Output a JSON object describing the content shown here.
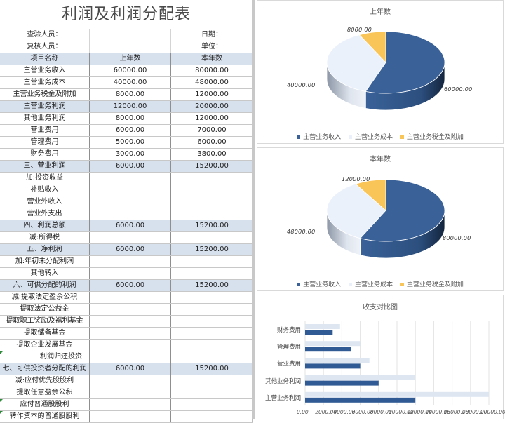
{
  "sheet": {
    "title": "利润及利润分配表",
    "meta": [
      {
        "left_label": "查验人员：",
        "right_label": "日期："
      },
      {
        "left_label": "复核人员：",
        "right_label": "单位："
      }
    ],
    "columns": [
      "项目名称",
      "上年数",
      "本年数"
    ],
    "rows": [
      {
        "name": "主营业务收入",
        "prev": "60000.00",
        "curr": "80000.00",
        "hl": false
      },
      {
        "name": "主营业务成本",
        "prev": "40000.00",
        "curr": "48000.00",
        "hl": false
      },
      {
        "name": "主营业务税金及附加",
        "prev": "8000.00",
        "curr": "12000.00",
        "hl": false
      },
      {
        "name": "主营业务利润",
        "prev": "12000.00",
        "curr": "20000.00",
        "hl": true
      },
      {
        "name": "其他业务利润",
        "prev": "8000.00",
        "curr": "12000.00",
        "hl": false
      },
      {
        "name": "营业费用",
        "prev": "6000.00",
        "curr": "7000.00",
        "hl": false
      },
      {
        "name": "管理费用",
        "prev": "5000.00",
        "curr": "6000.00",
        "hl": false
      },
      {
        "name": "财务费用",
        "prev": "3000.00",
        "curr": "3800.00",
        "hl": false
      },
      {
        "name": "三、营业利润",
        "prev": "6000.00",
        "curr": "15200.00",
        "hl": true
      },
      {
        "name": "加:投资收益",
        "prev": "",
        "curr": "",
        "hl": false
      },
      {
        "name": "补贴收入",
        "prev": "",
        "curr": "",
        "hl": false
      },
      {
        "name": "营业外收入",
        "prev": "",
        "curr": "",
        "hl": false
      },
      {
        "name": "营业外支出",
        "prev": "",
        "curr": "",
        "hl": false
      },
      {
        "name": "四、利润总额",
        "prev": "6000.00",
        "curr": "15200.00",
        "hl": true
      },
      {
        "name": "减:所得税",
        "prev": "",
        "curr": "",
        "hl": false
      },
      {
        "name": "五、净利润",
        "prev": "6000.00",
        "curr": "15200.00",
        "hl": true
      },
      {
        "name": "加:年初未分配利润",
        "prev": "",
        "curr": "",
        "hl": false
      },
      {
        "name": "其他转入",
        "prev": "",
        "curr": "",
        "hl": false
      },
      {
        "name": "六、可供分配的利润",
        "prev": "6000.00",
        "curr": "15200.00",
        "hl": true
      },
      {
        "name": "减:提取法定盈余公积",
        "prev": "",
        "curr": "",
        "hl": false
      },
      {
        "name": "提取法定公益金",
        "prev": "",
        "curr": "",
        "hl": false
      },
      {
        "name": "提取职工奖励及福利基金",
        "prev": "",
        "curr": "",
        "hl": false
      },
      {
        "name": "提取储备基金",
        "prev": "",
        "curr": "",
        "hl": false
      },
      {
        "name": "提取企业发展基金",
        "prev": "",
        "curr": "",
        "hl": false
      },
      {
        "name": "利润归还投资",
        "prev": "",
        "curr": "",
        "hl": false
      },
      {
        "name": "七、可供投资者分配的利润",
        "prev": "6000.00",
        "curr": "15200.00",
        "hl": true
      },
      {
        "name": "减:应付优先股股利",
        "prev": "",
        "curr": "",
        "hl": false
      },
      {
        "name": "提取任意盈余公积",
        "prev": "",
        "curr": "",
        "hl": false
      },
      {
        "name": "应付普通股股利",
        "prev": "",
        "curr": "",
        "hl": false
      },
      {
        "name": "转作资本的普通股股利",
        "prev": "",
        "curr": "",
        "hl": false
      }
    ]
  },
  "colors": {
    "revenue": "#3a6299",
    "cost": "#eaf1fb",
    "tax": "#f9c458",
    "bar_prev": "#2f5a94",
    "bar_curr": "#dde6f1",
    "header_fill": "#d7e1ee"
  },
  "chart_data": [
    {
      "type": "pie",
      "title": "上年数",
      "categories": [
        "主营业务收入",
        "主营业务成本",
        "主营业务税金及附加"
      ],
      "values": [
        60000,
        40000,
        8000
      ],
      "labels": [
        "60000.00",
        "40000.00",
        "8000.00"
      ],
      "legend_position": "bottom",
      "style": "3d"
    },
    {
      "type": "pie",
      "title": "本年数",
      "categories": [
        "主营业务收入",
        "主营业务成本",
        "主营业务税金及附加"
      ],
      "values": [
        80000,
        48000,
        12000
      ],
      "labels": [
        "80000.00",
        "48000.00",
        "12000.00"
      ],
      "legend_position": "bottom",
      "style": "3d"
    },
    {
      "type": "bar",
      "orientation": "horizontal",
      "title": "收支对比图",
      "categories": [
        "财务费用",
        "管理费用",
        "营业费用",
        "其他业务利润",
        "主营业务利润"
      ],
      "series": [
        {
          "name": "本年数",
          "values": [
            3800,
            6000,
            7000,
            12000,
            20000
          ]
        },
        {
          "name": "上年数",
          "values": [
            3000,
            5000,
            6000,
            8000,
            12000
          ]
        }
      ],
      "xlim": [
        0,
        20000
      ],
      "x_ticks": [
        "0.00",
        "2000.00",
        "4000.00",
        "6000.00",
        "8000.00",
        "10000.00",
        "12000.00",
        "14000.00",
        "16000.00",
        "18000.00",
        "20000.00"
      ],
      "grid": true,
      "legend": false
    }
  ]
}
